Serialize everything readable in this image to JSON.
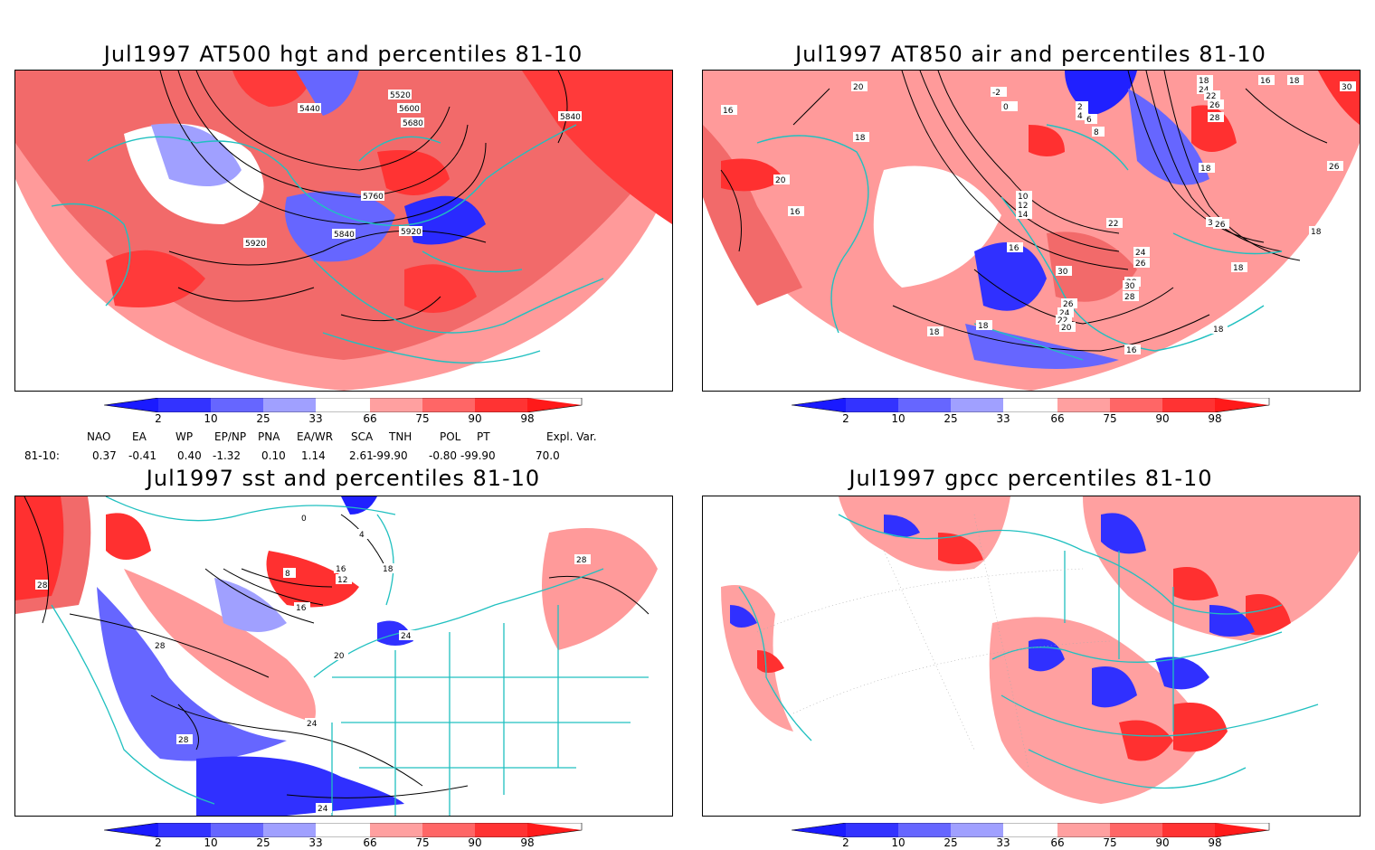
{
  "panels": [
    {
      "id": "hgt",
      "title": "Jul1997 AT500 hgt and percentiles 81-10",
      "contour_labels": [
        "5440",
        "5520",
        "5600",
        "5680",
        "5840",
        "5760",
        "5920",
        "5840",
        "5920"
      ]
    },
    {
      "id": "air",
      "title": "Jul1997 AT850 air and percentiles 81-10",
      "contour_labels": [
        "20",
        "18",
        "16",
        "20",
        "16",
        "-2",
        "0",
        "2",
        "4",
        "6",
        "8",
        "10",
        "12",
        "14",
        "16",
        "22",
        "24",
        "26",
        "28",
        "30",
        "26",
        "24",
        "22",
        "20",
        "18",
        "16",
        "18",
        "16",
        "18",
        "24",
        "22",
        "26",
        "28",
        "32",
        "30",
        "26",
        "18",
        "18",
        "18",
        "18",
        "18",
        "30",
        "28",
        "26"
      ]
    },
    {
      "id": "sst",
      "title": "Jul1997 sst and percentiles 81-10",
      "contour_labels": [
        "28",
        "28",
        "28",
        "24",
        "28",
        "8",
        "12",
        "16",
        "16",
        "18",
        "20",
        "24",
        "4",
        "0",
        "24"
      ]
    },
    {
      "id": "gpcc",
      "title": "Jul1997 gpcc percentiles 81-10",
      "contour_labels": []
    }
  ],
  "colorbar": {
    "ticks": [
      "2",
      "10",
      "25",
      "33",
      "66",
      "75",
      "90",
      "98"
    ],
    "colors": [
      "#1a1aff",
      "#3333ff",
      "#6666ff",
      "#a0a0ff",
      "#ffffff",
      "#ffa0a0",
      "#ff6666",
      "#ff3333",
      "#ff1a1a"
    ]
  },
  "indices": {
    "headers": [
      "NAO",
      "EA",
      "WP",
      "EP/NP",
      "PNA",
      "EA/WR",
      "SCA",
      "TNH",
      "POL",
      "PT",
      "Expl. Var."
    ],
    "row_label": "81-10:",
    "values": [
      "0.37",
      "-0.41",
      "0.40",
      "-1.32",
      "0.10",
      "1.14",
      "2.61",
      "-99.90",
      "-0.80",
      "-99.90",
      "70.0"
    ]
  },
  "colors": {
    "coast": "#20c0c0",
    "contour": "#000000",
    "red1": "#ffa6a6",
    "red2": "#f66a6a",
    "red3": "#ff3030",
    "blue1": "#a0a0ff",
    "blue2": "#5a5aff",
    "blue3": "#1e1eff"
  }
}
